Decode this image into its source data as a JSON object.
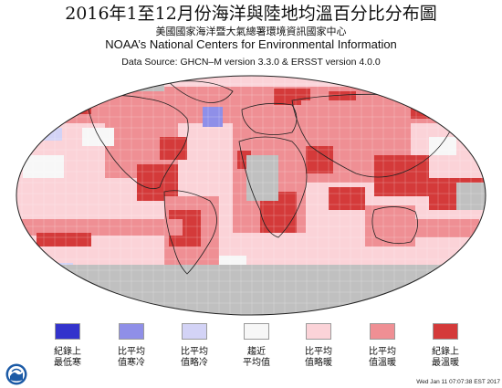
{
  "header": {
    "title": "2016年1至12月份海洋與陸地均溫百分比分布圖",
    "subtitle_cn": "美國國家海洋暨大氣總署環境資訊國家中心",
    "subtitle_en": "NOAA’s National Centers for Environmental Information",
    "source": "Data Source: GHCN–M version 3.3.0 & ERSST version 4.0.0"
  },
  "legend": [
    {
      "label": "紀錄上\n最低寒",
      "color": "#3333cc"
    },
    {
      "label": "比平均\n值寒冷",
      "color": "#8f8fe8"
    },
    {
      "label": "比平均\n值略冷",
      "color": "#d3d3f6"
    },
    {
      "label": "趨近\n平均值",
      "color": "#f7f7f7"
    },
    {
      "label": "比平均\n值略暖",
      "color": "#fbd3d8"
    },
    {
      "label": "比平均\n值溫暖",
      "color": "#ef8f94"
    },
    {
      "label": "紀錄上\n最溫暖",
      "color": "#d43a3a"
    }
  ],
  "map_colors": {
    "no_data": "#c0c0c0",
    "border": "#222222"
  },
  "footer": {
    "timestamp": "Wed Jan 11 07:07:38 EST 2017",
    "logo": "noaa-logo"
  }
}
